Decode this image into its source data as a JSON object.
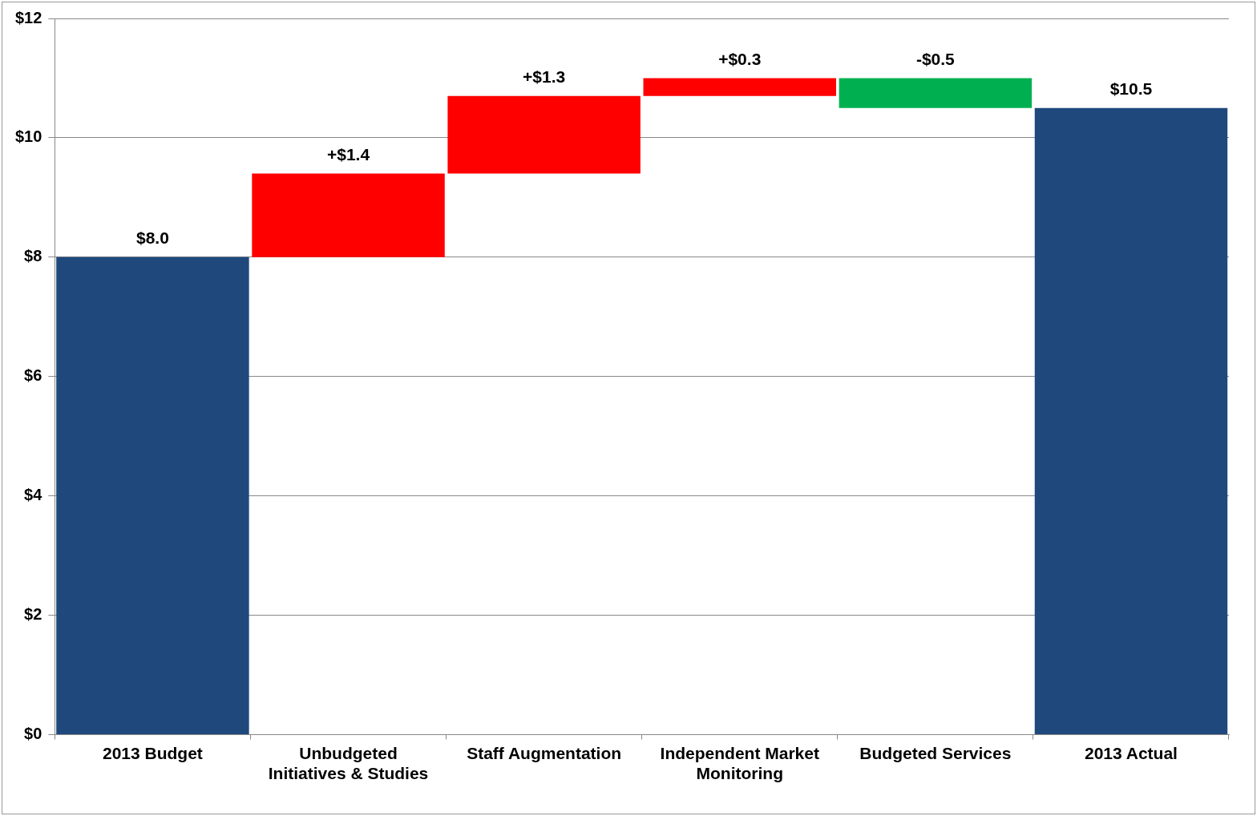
{
  "chart_data": {
    "type": "bar",
    "categories": [
      "2013 Budget",
      "Unbudgeted Initiatives & Studies",
      "Staff Augmentation",
      "Independent Market Monitoring",
      "Budgeted Services",
      "2013 Actual"
    ],
    "values": [
      8.0,
      1.4,
      1.3,
      0.3,
      -0.5,
      10.5
    ],
    "base": [
      0,
      8.0,
      9.4,
      10.7,
      11.0,
      0
    ],
    "colors": [
      "#1f497d",
      "#ff0000",
      "#ff0000",
      "#ff0000",
      "#00b050",
      "#1f497d"
    ],
    "value_labels": [
      "$8.0",
      "+$1.4",
      "+$1.3",
      "+$0.3",
      "-$0.5",
      "$10.5"
    ],
    "ylim": [
      0,
      12
    ],
    "yticks": [
      {
        "value": 0,
        "label": "$0"
      },
      {
        "value": 2,
        "label": "$2"
      },
      {
        "value": 4,
        "label": "$4"
      },
      {
        "value": 6,
        "label": "$6"
      },
      {
        "value": 8,
        "label": "$8"
      },
      {
        "value": 10,
        "label": "$10"
      },
      {
        "value": 12,
        "label": "$12"
      }
    ],
    "grid": "y",
    "legend": false
  }
}
